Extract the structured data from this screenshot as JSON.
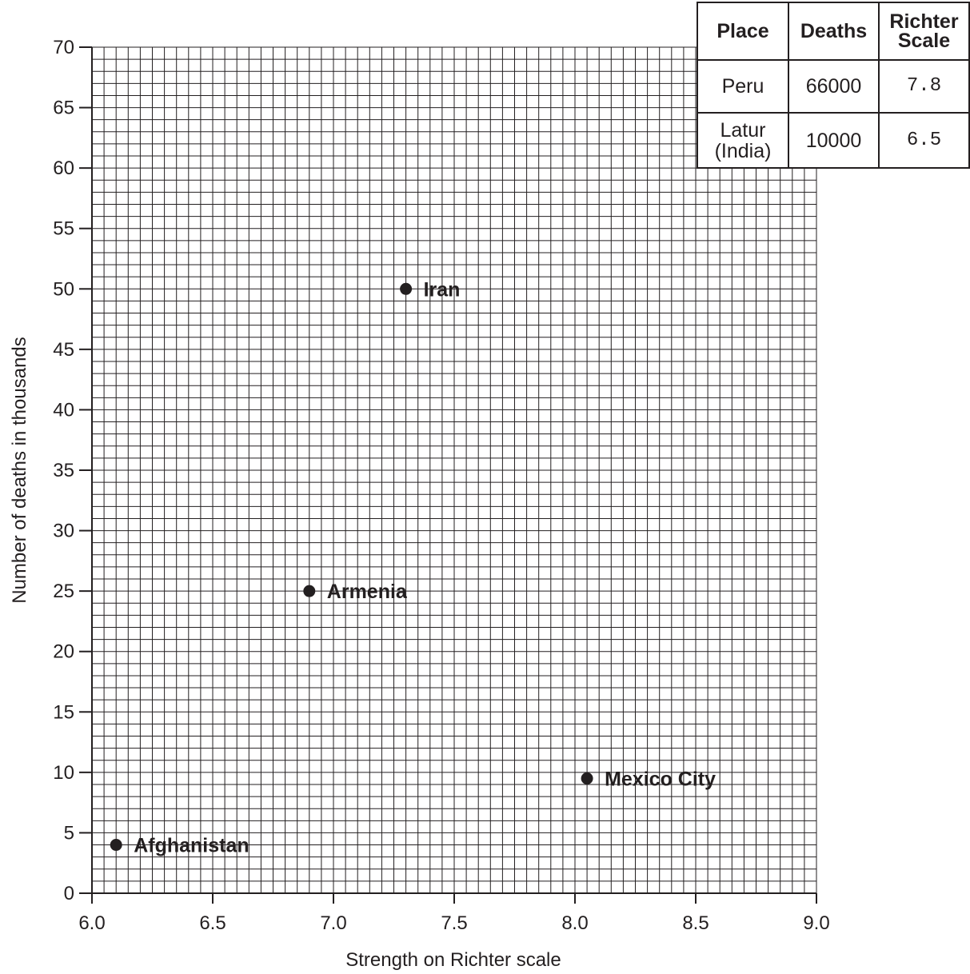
{
  "chart_data": {
    "type": "scatter",
    "title": "",
    "xlabel": "Strength on Richter scale",
    "ylabel": "Number of deaths in thousands",
    "xlim": [
      6.0,
      9.0
    ],
    "ylim": [
      0,
      70
    ],
    "x_ticks": [
      "6.0",
      "6.5",
      "7.0",
      "7.5",
      "8.0",
      "8.5",
      "9.0"
    ],
    "y_ticks": [
      "0",
      "5",
      "10",
      "15",
      "20",
      "25",
      "30",
      "35",
      "40",
      "45",
      "50",
      "55",
      "60",
      "65",
      "70"
    ],
    "grid": true,
    "points": [
      {
        "label": "Iran",
        "x": 7.3,
        "y": 50
      },
      {
        "label": "Armenia",
        "x": 6.9,
        "y": 25
      },
      {
        "label": "Mexico City",
        "x": 8.05,
        "y": 9.5
      },
      {
        "label": "Afghanistan",
        "x": 6.1,
        "y": 4
      }
    ]
  },
  "table": {
    "headers": [
      "Place",
      "Deaths",
      "Richter Scale"
    ],
    "rows": [
      {
        "place": "Peru",
        "deaths": "66000",
        "scale": "7.8"
      },
      {
        "place": "Latur (India)",
        "deaths": "10000",
        "scale": "6.5"
      }
    ]
  }
}
